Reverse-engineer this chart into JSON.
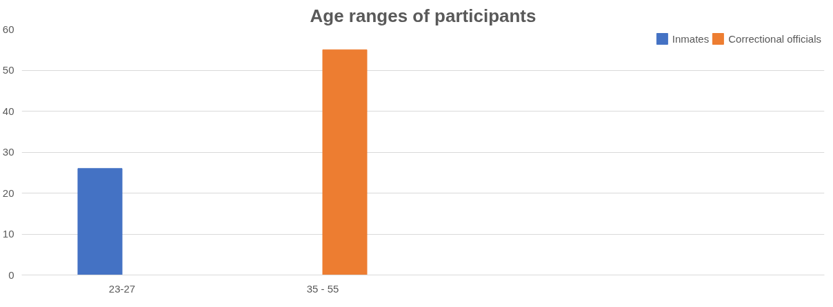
{
  "chart_data": {
    "type": "bar",
    "title": "Age ranges of participants",
    "categories": [
      "23-27",
      "35 - 55",
      null,
      null
    ],
    "series": [
      {
        "name": "Inmates",
        "color": "#4472c4",
        "values": [
          26,
          null,
          null,
          null
        ]
      },
      {
        "name": "Correctional officials",
        "color": "#ed7d31",
        "values": [
          null,
          55,
          null,
          null
        ]
      }
    ],
    "ylim": [
      0,
      60
    ],
    "yticks": [
      0,
      10,
      20,
      30,
      40,
      50,
      60
    ],
    "grid": "y",
    "legend": "top right"
  }
}
